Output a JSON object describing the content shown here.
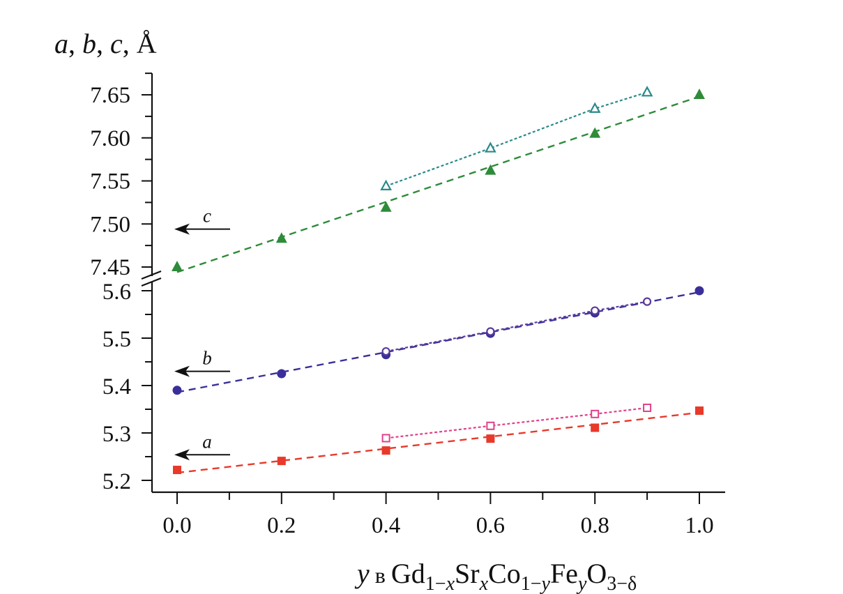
{
  "chart_data": {
    "type": "scatter",
    "title": "",
    "ylabel": "a, b, c, Å",
    "ylabel_parts": {
      "a": "a",
      "b": "b",
      "c": "c",
      "unit": "Å",
      "sep": ", "
    },
    "xlabel": "y в Gd1−xSrxCo1−yFeyO3−δ",
    "xlabel_parts": {
      "var": "y",
      "prep": "в",
      "formula": [
        {
          "t": "Gd",
          "s": null
        },
        {
          "t": "1−",
          "s": "sub"
        },
        {
          "t": "x",
          "s": "sub-italic"
        },
        {
          "t": "Sr",
          "s": null
        },
        {
          "t": "x",
          "s": "sub-italic"
        },
        {
          "t": "Co",
          "s": null
        },
        {
          "t": "1−",
          "s": "sub"
        },
        {
          "t": "y",
          "s": "sub-italic"
        },
        {
          "t": "Fe",
          "s": null
        },
        {
          "t": "y",
          "s": "sub-italic"
        },
        {
          "t": "O",
          "s": null
        },
        {
          "t": "3−δ",
          "s": "sub"
        }
      ]
    },
    "xlim": [
      -0.05,
      1.05
    ],
    "x_ticks": [
      "0.0",
      "0.2",
      "0.4",
      "0.6",
      "0.8",
      "1.0"
    ],
    "x_tick_values": [
      0.0,
      0.2,
      0.4,
      0.6,
      0.8,
      1.0
    ],
    "x_minor_ticks": [
      0.1,
      0.3,
      0.5,
      0.7,
      0.9
    ],
    "y_axis_broken": true,
    "y_upper": {
      "range": [
        7.445,
        7.675
      ],
      "ticks": [
        "7.45",
        "7.50",
        "7.55",
        "7.60",
        "7.65"
      ],
      "tick_values": [
        7.45,
        7.5,
        7.55,
        7.6,
        7.65
      ],
      "minor_ticks": [
        7.475,
        7.525,
        7.575,
        7.625,
        7.675
      ]
    },
    "y_lower": {
      "range": [
        5.175,
        5.605
      ],
      "ticks": [
        "5.2",
        "5.3",
        "5.4",
        "5.5",
        "5.6"
      ],
      "tick_values": [
        5.2,
        5.3,
        5.4,
        5.5,
        5.6
      ],
      "minor_ticks": [
        5.25,
        5.35,
        5.45,
        5.55
      ]
    },
    "grid": false,
    "legend": "none",
    "annotations": [
      {
        "text": "c",
        "axis": "upper",
        "x": 0.05,
        "y": 7.494,
        "arrow": "left"
      },
      {
        "text": "b",
        "axis": "lower",
        "x": 0.05,
        "y": 5.43,
        "arrow": "left"
      },
      {
        "text": "a",
        "axis": "lower",
        "x": 0.05,
        "y": 5.254,
        "arrow": "left"
      }
    ],
    "series": [
      {
        "name": "c (filled)",
        "param": "c",
        "axis": "upper",
        "marker": "triangle-filled",
        "color": "#2e8b3a",
        "line": "dashed",
        "fit": [
          7.444,
          7.648
        ],
        "x": [
          0.0,
          0.2,
          0.4,
          0.6,
          0.8,
          1.0
        ],
        "y": [
          7.45,
          7.483,
          7.519,
          7.562,
          7.605,
          7.65
        ]
      },
      {
        "name": "c (open)",
        "param": "c",
        "axis": "upper",
        "marker": "triangle-open",
        "color": "#2a8a8a",
        "line": "dotted",
        "x": [
          0.4,
          0.6,
          0.8,
          0.9
        ],
        "y": [
          7.544,
          7.588,
          7.634,
          7.653
        ]
      },
      {
        "name": "b (filled)",
        "param": "b",
        "axis": "lower",
        "marker": "circle-filled",
        "color": "#3a2f9a",
        "line": "dashed",
        "fit": [
          5.386,
          5.597
        ],
        "x": [
          0.0,
          0.2,
          0.4,
          0.6,
          0.8,
          1.0
        ],
        "y": [
          5.39,
          5.425,
          5.465,
          5.51,
          5.553,
          5.6
        ]
      },
      {
        "name": "b (open)",
        "param": "b",
        "axis": "lower",
        "marker": "circle-open",
        "color": "#5a3a9a",
        "line": "dotted",
        "x": [
          0.4,
          0.6,
          0.8,
          0.9
        ],
        "y": [
          5.472,
          5.514,
          5.558,
          5.577
        ]
      },
      {
        "name": "a (filled)",
        "param": "a",
        "axis": "lower",
        "marker": "square-filled",
        "color": "#e8392a",
        "line": "dashed",
        "fit": [
          5.216,
          5.343
        ],
        "x": [
          0.0,
          0.2,
          0.4,
          0.6,
          0.8,
          1.0
        ],
        "y": [
          5.222,
          5.241,
          5.263,
          5.288,
          5.311,
          5.347
        ]
      },
      {
        "name": "a (open)",
        "param": "a",
        "axis": "lower",
        "marker": "square-open",
        "color": "#e0408a",
        "line": "dotted",
        "x": [
          0.4,
          0.6,
          0.8,
          0.9
        ],
        "y": [
          5.289,
          5.315,
          5.34,
          5.353
        ]
      }
    ]
  }
}
